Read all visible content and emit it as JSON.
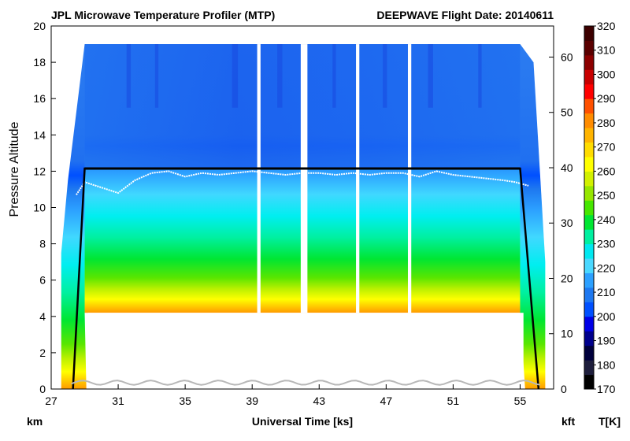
{
  "chart_data": {
    "type": "heatmap",
    "title": "JPL Microwave Temperature Profiler (MTP)",
    "subtitle": "DEEPWAVE  Flight Date: 20140611",
    "xlabel": "Universal Time [ks]",
    "ylabel": "Pressure Altitude",
    "left_unit": "km",
    "right_unit": "kft",
    "colorbar_label": "T[K]",
    "xlim": [
      27,
      57
    ],
    "ylim_km": [
      0,
      20
    ],
    "ylim_kft": [
      0,
      65.62
    ],
    "x_ticks": [
      27,
      31,
      35,
      39,
      43,
      47,
      51,
      55
    ],
    "y_ticks_km": [
      0,
      2,
      4,
      6,
      8,
      10,
      12,
      14,
      16,
      18,
      20
    ],
    "y_ticks_kft": [
      0,
      10,
      20,
      30,
      40,
      50,
      60
    ],
    "colorbar_ticks": [
      170,
      180,
      190,
      200,
      210,
      220,
      230,
      240,
      250,
      260,
      270,
      280,
      290,
      300,
      310,
      320
    ],
    "colorbar_colors": [
      "#000000",
      "#1e1e3c",
      "#00003c",
      "#00008c",
      "#0000e6",
      "#0050ff",
      "#1e78f0",
      "#2ca0ff",
      "#4ad8ff",
      "#00e8f0",
      "#00f0a0",
      "#00e632",
      "#46e600",
      "#96e600",
      "#d2f000",
      "#ffff00",
      "#ffdc00",
      "#ffb400",
      "#ff8c00",
      "#ff5000",
      "#ff0000",
      "#c80000",
      "#8c0000",
      "#5a0000",
      "#3c0000"
    ],
    "flight_level_km": 12.15,
    "takeoff_ks": 28.3,
    "landing_ks": 56.1,
    "cruise_start_ks": 29.0,
    "cruise_end_ks": 55.0,
    "data_gaps_ks": [
      [
        39.3,
        39.5
      ],
      [
        41.9,
        42.3
      ],
      [
        45.2,
        45.4
      ],
      [
        48.3,
        48.5
      ]
    ],
    "tropopause_km": [
      [
        28.5,
        10.7
      ],
      [
        29.0,
        11.4
      ],
      [
        30.0,
        11.1
      ],
      [
        31.0,
        10.8
      ],
      [
        32.0,
        11.5
      ],
      [
        33.0,
        11.9
      ],
      [
        34.0,
        12.0
      ],
      [
        35.0,
        11.7
      ],
      [
        36.0,
        11.9
      ],
      [
        37.0,
        11.8
      ],
      [
        38.0,
        11.9
      ],
      [
        39.0,
        12.0
      ],
      [
        40.0,
        11.9
      ],
      [
        41.0,
        11.8
      ],
      [
        42.0,
        11.9
      ],
      [
        43.0,
        11.9
      ],
      [
        44.0,
        11.8
      ],
      [
        45.0,
        11.9
      ],
      [
        46.0,
        11.8
      ],
      [
        47.0,
        11.9
      ],
      [
        48.0,
        11.9
      ],
      [
        49.0,
        11.7
      ],
      [
        50.0,
        12.0
      ],
      [
        51.0,
        11.8
      ],
      [
        52.0,
        11.7
      ],
      [
        53.0,
        11.6
      ],
      [
        54.0,
        11.5
      ],
      [
        54.7,
        11.4
      ],
      [
        55.5,
        11.2
      ]
    ]
  }
}
